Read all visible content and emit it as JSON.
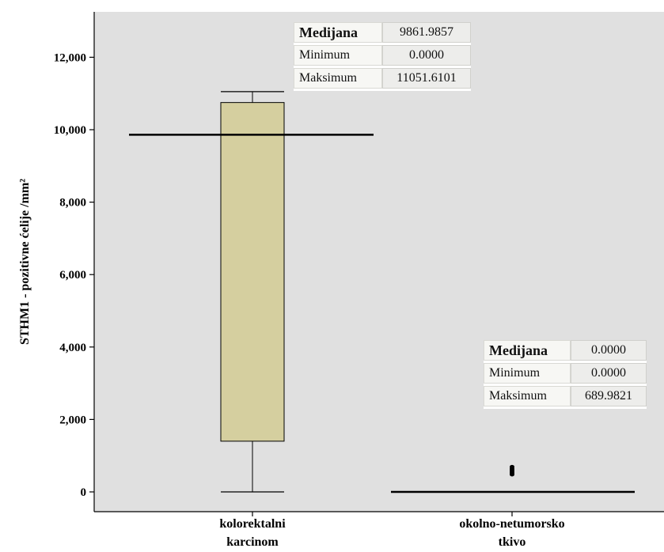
{
  "chart_data": {
    "type": "box",
    "ylabel": "STHM1 - pozitivne ćelije /mm²",
    "ylim": [
      -600,
      12700
    ],
    "yticks": [
      0,
      2000,
      4000,
      6000,
      8000,
      10000,
      12000
    ],
    "ytick_labels": [
      "0",
      "2,000",
      "4,000",
      "6,000",
      "8,000",
      "10,000",
      "12,000"
    ],
    "categories": [
      "kolorektalni karcinom",
      "okolno-netumorsko tkivo"
    ],
    "category_lines": [
      [
        "kolorektalni",
        "karcinom"
      ],
      [
        "okolno-netumorsko",
        "tkivo"
      ]
    ],
    "boxes": [
      {
        "whisker_low": 0,
        "q1": 1400,
        "median": 9862,
        "q3": 10750,
        "whisker_high": 11050,
        "outliers": []
      },
      {
        "whisker_low": 0,
        "q1": 0,
        "median": 0,
        "q3": 0,
        "whisker_high": 0,
        "outliers": [
          480,
          520,
          560,
          600,
          640,
          690
        ]
      }
    ],
    "box_fill": "#d5cf9f",
    "plot_background": "#e0e0e0",
    "grid": false
  },
  "stats_tables": [
    {
      "rows": [
        {
          "label": "Medijana",
          "value": "9861.9857",
          "bold": true
        },
        {
          "label": "Minimum",
          "value": "0.0000",
          "bold": false
        },
        {
          "label": "Maksimum",
          "value": "11051.6101",
          "bold": false
        }
      ]
    },
    {
      "rows": [
        {
          "label": "Medijana",
          "value": "0.0000",
          "bold": true
        },
        {
          "label": "Minimum",
          "value": "0.0000",
          "bold": false
        },
        {
          "label": "Maksimum",
          "value": "689.9821",
          "bold": false
        }
      ]
    }
  ]
}
